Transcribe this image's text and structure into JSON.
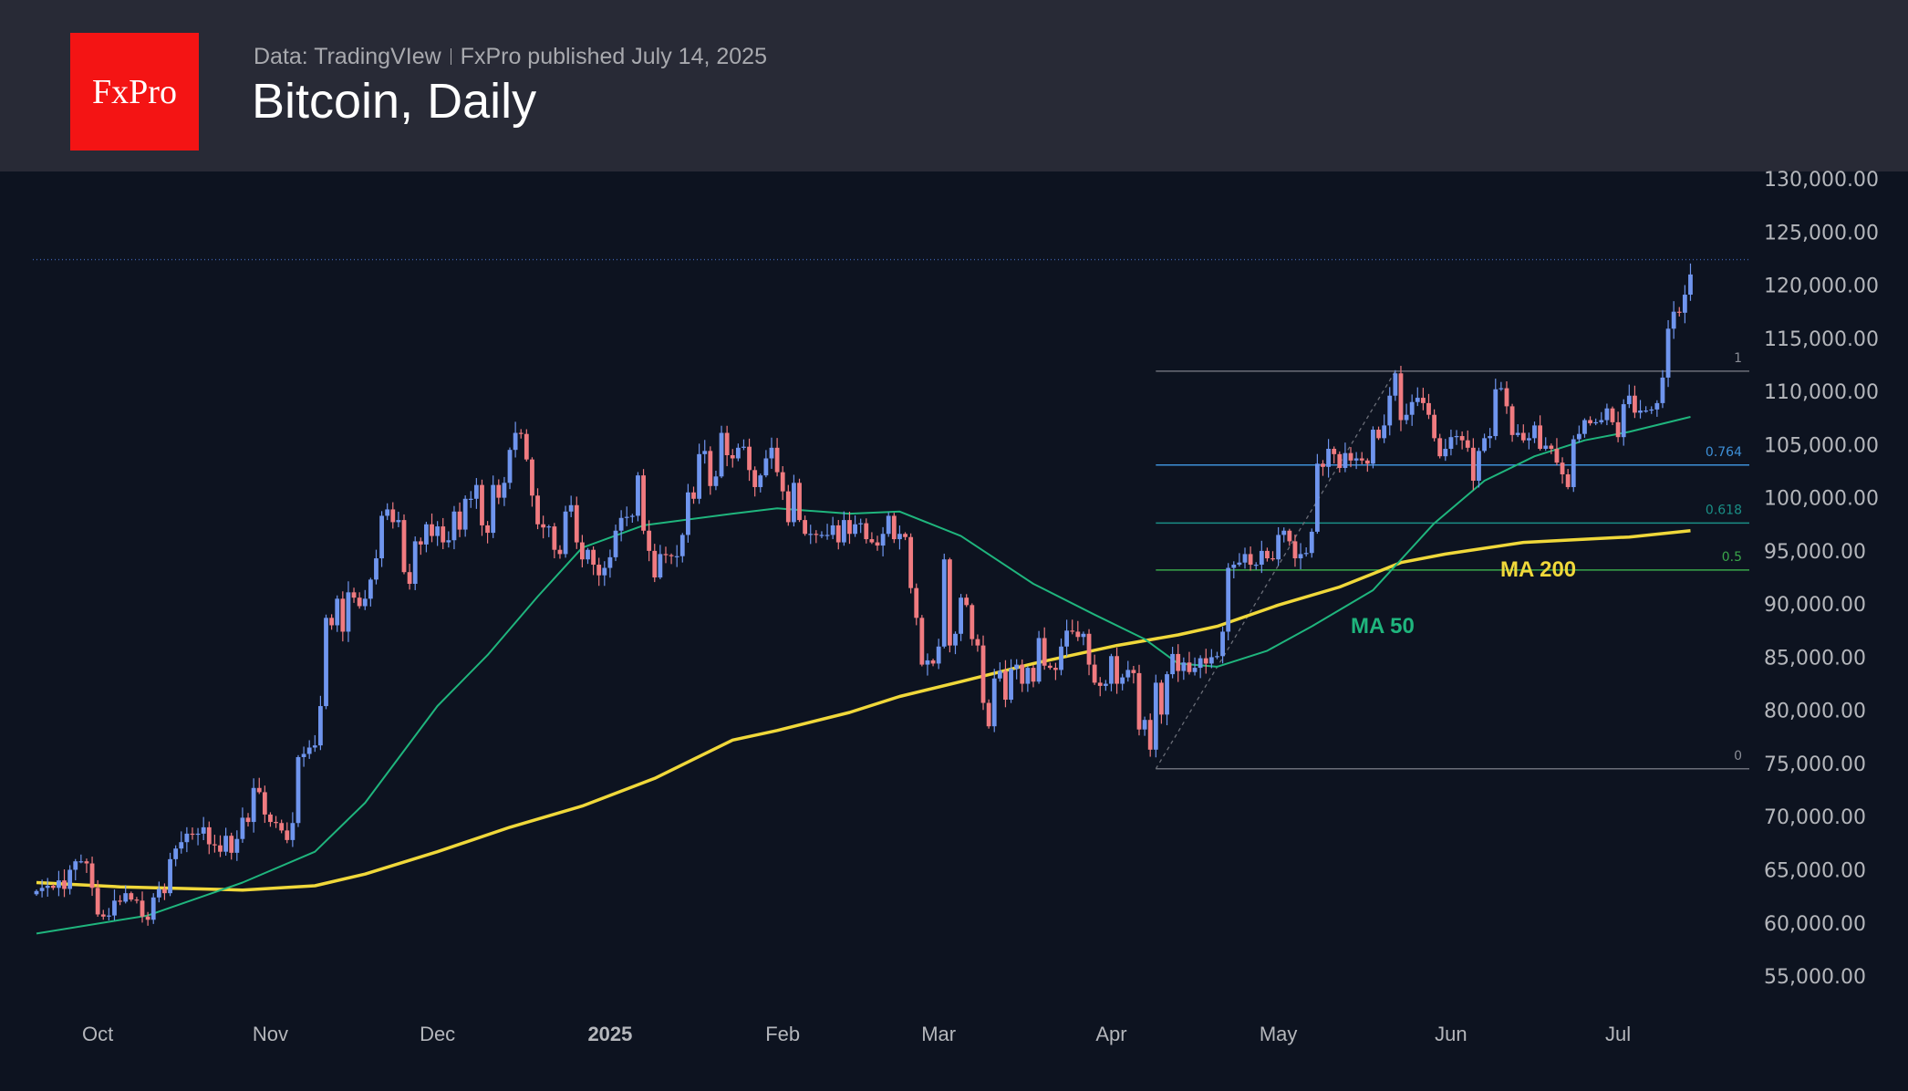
{
  "header": {
    "logo_text": "FxPro",
    "source": "Data: TradingVIew",
    "published": "FxPro published July 14, 2025",
    "title": "Bitcoin, Daily"
  },
  "colors": {
    "up": "#6f95ee",
    "down": "#f07b80",
    "ma50": "#1fb57d",
    "ma200": "#f0d83a",
    "fib1": "#6b6e78",
    "fib764": "#3d8fd6",
    "fib618": "#1a8f86",
    "fib05": "#3aa64a",
    "fib0": "#6b6e78"
  },
  "chart_data": {
    "type": "candlestick",
    "title": "Bitcoin, Daily",
    "start_date": "2024-09-20",
    "interval": "1 day",
    "closes": [
      63000,
      63300,
      63500,
      63300,
      64000,
      63200,
      65000,
      65800,
      65800,
      65600,
      63300,
      60800,
      60600,
      60700,
      62100,
      62000,
      62800,
      62200,
      62100,
      60600,
      60300,
      62400,
      63200,
      62800,
      66000,
      67000,
      67600,
      68400,
      68300,
      68400,
      69000,
      67400,
      67300,
      66700,
      68200,
      66600,
      67900,
      69900,
      69500,
      72700,
      72300,
      70200,
      69500,
      69400,
      68700,
      67800,
      69400,
      75600,
      75900,
      76500,
      76700,
      80400,
      88700,
      88000,
      90500,
      87400,
      91100,
      90600,
      89800,
      90500,
      92300,
      94300,
      98300,
      98900,
      97700,
      97900,
      93000,
      91900,
      95900,
      95600,
      97500,
      96400,
      97300,
      95800,
      96000,
      98700,
      97000,
      99900,
      99900,
      101200,
      97400,
      96700,
      101200,
      100000,
      101400,
      104500,
      106100,
      106000,
      103600,
      100200,
      97500,
      97200,
      97300,
      95100,
      94700,
      98700,
      99300,
      95800,
      94200,
      95100,
      93700,
      92700,
      93400,
      94400,
      96900,
      98100,
      98200,
      98300,
      102100,
      96900,
      95000,
      92500,
      94700,
      94600,
      94500,
      94500,
      96500,
      100500,
      99900,
      104100,
      104400,
      101100,
      102000,
      106100,
      104000,
      103700,
      104700,
      104800,
      102600,
      101000,
      102100,
      103700,
      104700,
      102400,
      100600,
      97700,
      101400,
      97900,
      96600,
      96600,
      96500,
      96500,
      96500,
      97400,
      95800,
      97900,
      96600,
      97500,
      97600,
      96100,
      95800,
      95500,
      96600,
      98300,
      96100,
      96600,
      96300,
      91500,
      88700,
      84300,
      84700,
      84400,
      86000,
      94200,
      86100,
      87200,
      90600,
      89900,
      86700,
      86100,
      80700,
      78500,
      83000,
      83700,
      81000,
      83900,
      84300,
      82500,
      84000,
      82700,
      86800,
      84200,
      84000,
      83800,
      86000,
      87500,
      87400,
      86900,
      87200,
      84300,
      82600,
      82300,
      82500,
      85100,
      82500,
      83100,
      83800,
      83500,
      78200,
      79100,
      76300,
      82600,
      79600,
      83400,
      85300,
      83700,
      84500,
      83600,
      84000,
      84900,
      84400,
      85000,
      85100,
      87400,
      93400,
      93700,
      93900,
      94700,
      93700,
      93700,
      95000,
      94300,
      94200,
      96500,
      96900,
      95900,
      94300,
      94700,
      94800,
      96800,
      103200,
      102900,
      104600,
      104100,
      102800,
      104200,
      103500,
      103700,
      103500,
      103200,
      106400,
      105600,
      106800,
      109600,
      111700,
      107300,
      107800,
      109000,
      109400,
      108900,
      107800,
      105600,
      103900,
      104600,
      105700,
      105800,
      105400,
      104700,
      101600,
      104400,
      105600,
      105800,
      110200,
      110300,
      108600,
      105900,
      106100,
      105400,
      105600,
      106800,
      104600,
      104900,
      104600,
      103300,
      102200,
      101000,
      105500,
      106000,
      107300,
      107000,
      107100,
      107300,
      108400,
      107100,
      105700,
      108800,
      109600,
      108000,
      108200,
      108200,
      108300,
      108900,
      111300,
      115900,
      117500,
      117400,
      119100,
      121000
    ],
    "last_high": 122400,
    "ma50": {
      "label": "MA 50",
      "points": [
        [
          0,
          59000
        ],
        [
          20,
          60700
        ],
        [
          37,
          63800
        ],
        [
          50,
          66700
        ],
        [
          59,
          71300
        ],
        [
          72,
          80400
        ],
        [
          81,
          85200
        ],
        [
          90,
          90700
        ],
        [
          98,
          95300
        ],
        [
          109,
          97400
        ],
        [
          125,
          98500
        ],
        [
          133,
          99000
        ],
        [
          146,
          98500
        ],
        [
          155,
          98700
        ],
        [
          166,
          96400
        ],
        [
          179,
          91900
        ],
        [
          190,
          89000
        ],
        [
          199,
          86700
        ],
        [
          205,
          84400
        ],
        [
          212,
          84100
        ],
        [
          221,
          85600
        ],
        [
          229,
          87900
        ],
        [
          240,
          91300
        ],
        [
          251,
          97600
        ],
        [
          260,
          101600
        ],
        [
          269,
          103900
        ],
        [
          278,
          105400
        ],
        [
          286,
          106200
        ],
        [
          297,
          107600
        ]
      ]
    },
    "ma200": {
      "label": "MA 200",
      "points": [
        [
          0,
          63800
        ],
        [
          15,
          63400
        ],
        [
          37,
          63100
        ],
        [
          50,
          63500
        ],
        [
          59,
          64600
        ],
        [
          72,
          66700
        ],
        [
          85,
          69000
        ],
        [
          98,
          71000
        ],
        [
          111,
          73600
        ],
        [
          125,
          77200
        ],
        [
          133,
          78100
        ],
        [
          146,
          79800
        ],
        [
          155,
          81300
        ],
        [
          166,
          82700
        ],
        [
          179,
          84400
        ],
        [
          194,
          86100
        ],
        [
          205,
          87100
        ],
        [
          212,
          87900
        ],
        [
          223,
          89900
        ],
        [
          234,
          91600
        ],
        [
          245,
          93900
        ],
        [
          253,
          94700
        ],
        [
          267,
          95800
        ],
        [
          278,
          96100
        ],
        [
          286,
          96300
        ],
        [
          297,
          96900
        ]
      ]
    },
    "fibonacci": {
      "start_index": 201,
      "end_index": 244,
      "low": 74500,
      "high": 111900,
      "levels": [
        {
          "label": "1",
          "ratio": 1
        },
        {
          "label": "0.764",
          "ratio": 0.764
        },
        {
          "label": "0.618",
          "ratio": 0.618
        },
        {
          "label": "0.5",
          "ratio": 0.5
        },
        {
          "label": "0",
          "ratio": 0
        }
      ]
    },
    "y_ticks": [
      "130,000.00",
      "125,000.00",
      "120,000.00",
      "115,000.00",
      "110,000.00",
      "105,000.00",
      "100,000.00",
      "95,000.00",
      "90,000.00",
      "85,000.00",
      "80,000.00",
      "75,000.00",
      "70,000.00",
      "65,000.00",
      "60,000.00",
      "55,000.00"
    ],
    "ylim": [
      55000,
      130000
    ],
    "x_ticks": [
      {
        "label": "Oct",
        "index": 11
      },
      {
        "label": "Nov",
        "index": 42
      },
      {
        "label": "Dec",
        "index": 72
      },
      {
        "label": "2025",
        "index": 103,
        "bold": true
      },
      {
        "label": "Feb",
        "index": 134
      },
      {
        "label": "Mar",
        "index": 162
      },
      {
        "label": "Apr",
        "index": 193
      },
      {
        "label": "May",
        "index": 223
      },
      {
        "label": "Jun",
        "index": 254
      },
      {
        "label": "Jul",
        "index": 284
      }
    ]
  }
}
